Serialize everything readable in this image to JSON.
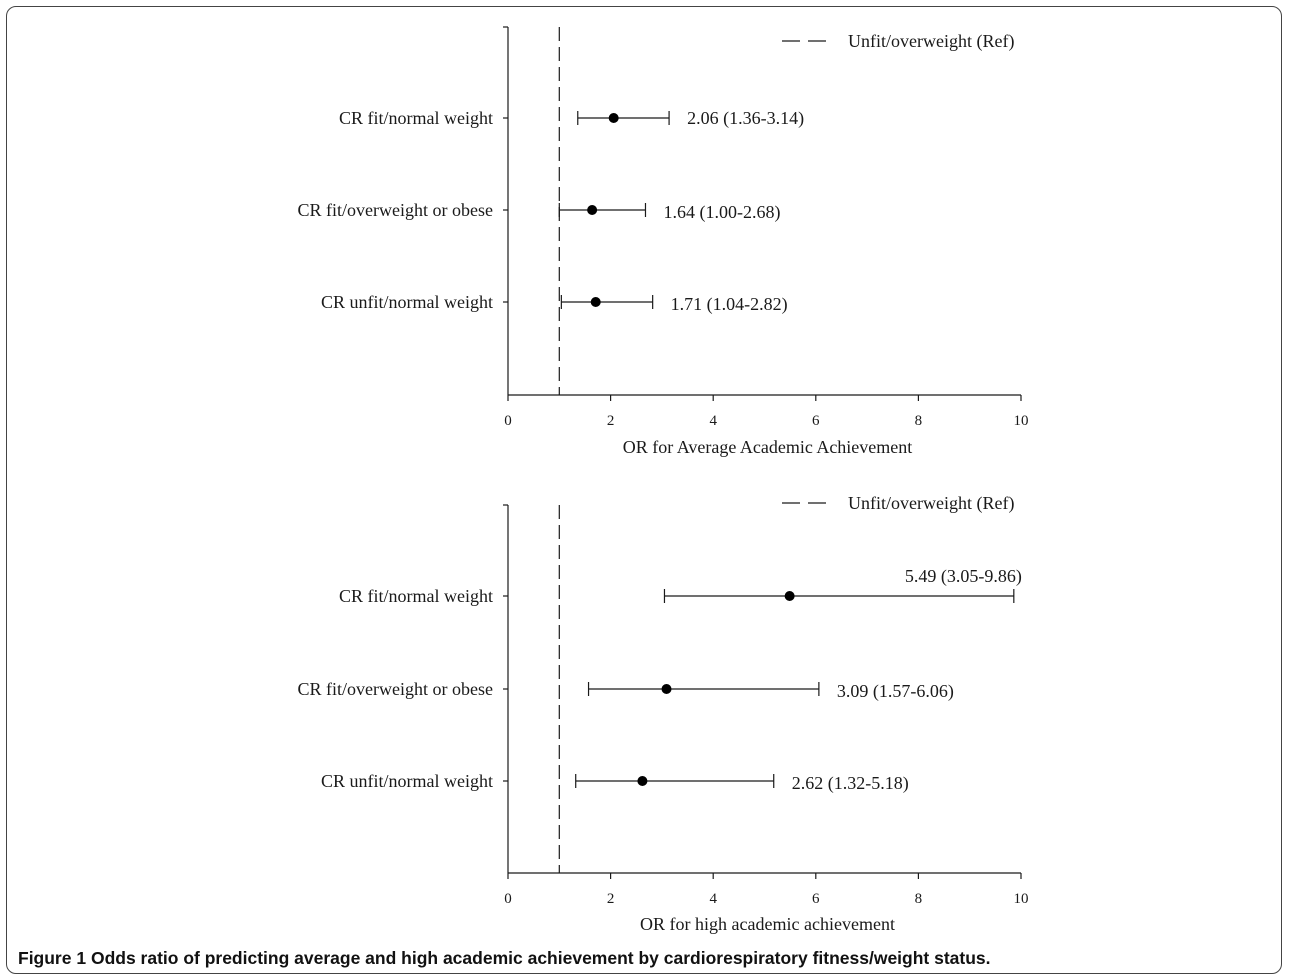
{
  "chart_data": [
    {
      "type": "forest",
      "xlabel": "OR for Average Academic Achievement",
      "xlim": [
        0,
        10
      ],
      "xticks": [
        0,
        2,
        4,
        6,
        8,
        10
      ],
      "reference": {
        "value": 1,
        "label": "Unfit/overweight (Ref)"
      },
      "rows": [
        {
          "label": "CR fit/normal weight",
          "or": 2.06,
          "lower": 1.36,
          "upper": 3.14,
          "text": "2.06 (1.36-3.14)"
        },
        {
          "label": "CR fit/overweight or obese",
          "or": 1.64,
          "lower": 1.0,
          "upper": 2.68,
          "text": "1.64 (1.00-2.68)"
        },
        {
          "label": "CR unfit/normal weight",
          "or": 1.71,
          "lower": 1.04,
          "upper": 2.82,
          "text": "1.71 (1.04-2.82)"
        }
      ]
    },
    {
      "type": "forest",
      "xlabel": "OR for high academic achievement",
      "xlim": [
        0,
        10
      ],
      "xticks": [
        0,
        2,
        4,
        6,
        8,
        10
      ],
      "reference": {
        "value": 1,
        "label": "Unfit/overweight (Ref)"
      },
      "rows": [
        {
          "label": "CR fit/normal weight",
          "or": 5.49,
          "lower": 3.05,
          "upper": 9.86,
          "text": "5.49 (3.05-9.86)"
        },
        {
          "label": "CR fit/overweight or obese",
          "or": 3.09,
          "lower": 1.57,
          "upper": 6.06,
          "text": "3.09 (1.57-6.06)"
        },
        {
          "label": "CR unfit/normal weight",
          "or": 2.62,
          "lower": 1.32,
          "upper": 5.18,
          "text": "2.62 (1.32-5.18)"
        }
      ]
    }
  ],
  "caption": {
    "label": "Figure 1",
    "text": "Odds ratio of predicting average and high academic achievement by cardiorespiratory fitness/weight status."
  }
}
